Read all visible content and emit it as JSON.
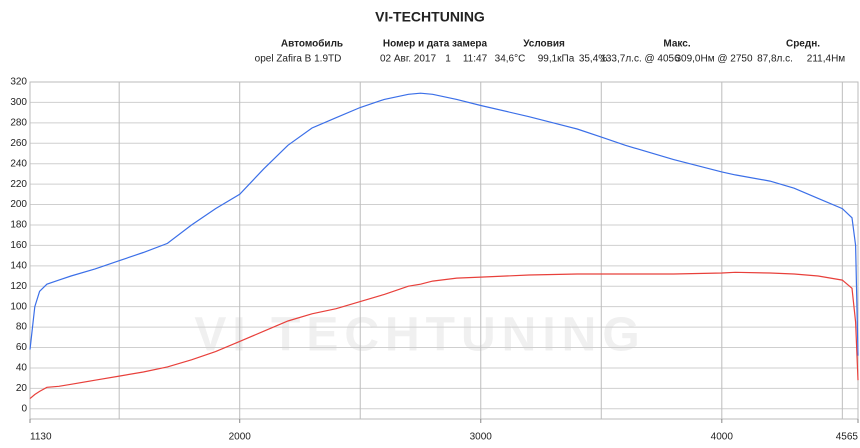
{
  "chart_data": {
    "type": "line",
    "title": "VI-TECHTUNING",
    "watermark": "VI TECHTUNING",
    "header": {
      "columns": [
        "Автомобиль",
        "Номер и дата замера",
        "Условия",
        "Макс.",
        "Средн."
      ],
      "row": [
        "opel Zafira B 1.9TD",
        "02 Авг. 2017",
        "1",
        "11:47",
        "34,6°C",
        "99,1кПа",
        "35,4%",
        "133,7л.с. @ 4056",
        "309,0Нм @ 2750",
        "87,8л.с.",
        "211,4Нм"
      ]
    },
    "x": [
      1130,
      1150,
      1170,
      1200,
      1250,
      1300,
      1400,
      1500,
      1600,
      1700,
      1800,
      1900,
      2000,
      2100,
      2200,
      2300,
      2400,
      2500,
      2600,
      2700,
      2750,
      2800,
      2900,
      3000,
      3200,
      3400,
      3500,
      3600,
      3800,
      4000,
      4056,
      4200,
      4300,
      4400,
      4500,
      4540,
      4555,
      4565
    ],
    "series": [
      {
        "color": "#3b6fe8",
        "values": [
          58,
          100,
          115,
          122,
          126,
          130,
          137,
          145,
          153,
          162,
          180,
          196,
          210,
          235,
          258,
          275,
          285,
          295,
          303,
          308,
          309,
          308,
          303,
          297,
          286,
          274,
          266,
          258,
          244,
          232,
          229,
          223,
          216,
          206,
          196,
          187,
          160,
          52
        ]
      },
      {
        "color": "#e8403b",
        "values": [
          10,
          14,
          17,
          21,
          22,
          24,
          28,
          32,
          36,
          41,
          48,
          56,
          66,
          76,
          86,
          93,
          98,
          105,
          112,
          120,
          122,
          125,
          128,
          129,
          131,
          132,
          132,
          132,
          132,
          133,
          133.7,
          133,
          132,
          130,
          126,
          118,
          85,
          28
        ]
      }
    ],
    "xlim": [
      1130,
      4565
    ],
    "ylim": [
      -10,
      320
    ],
    "xticks": [
      1130,
      2000,
      3000,
      4000,
      4565
    ],
    "xgrid": [
      1500,
      2000,
      2500,
      3000,
      3500,
      4000,
      4500
    ],
    "yticks": [
      0,
      20,
      40,
      60,
      80,
      100,
      120,
      140,
      160,
      180,
      200,
      220,
      240,
      260,
      280,
      300,
      320
    ],
    "grid": true
  }
}
